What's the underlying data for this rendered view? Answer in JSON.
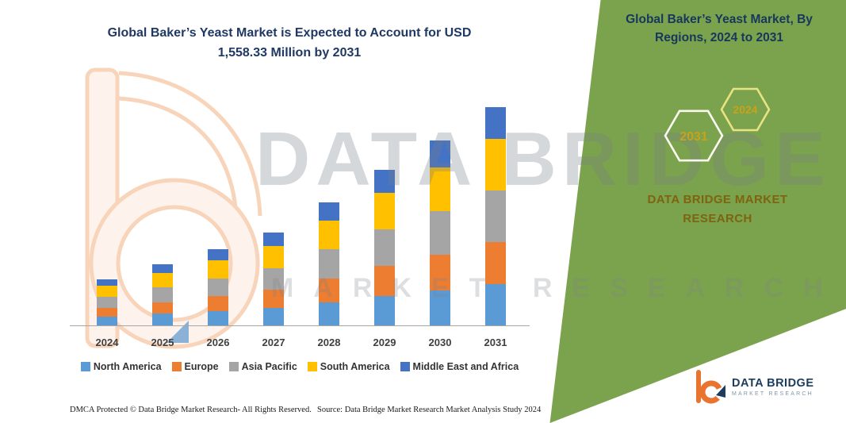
{
  "colors": {
    "panel_green": "#7ba24c",
    "title_navy": "#1f3864",
    "brand_gold": "#7d6410",
    "logo_orange": "#e8742f",
    "logo_navy": "#1c3c5e"
  },
  "watermark": {
    "line1": "DATA BRIDGE",
    "line2": "MARKET RESEARCH"
  },
  "chart_data": {
    "type": "bar",
    "stacked": true,
    "title": "Global Baker’s Yeast Market is Expected to Account for USD 1,558.33 Million by 2031",
    "xlabel": "",
    "ylabel": "",
    "ylim": [
      0,
      1600
    ],
    "grid": false,
    "legend_position": "bottom",
    "categories": [
      "2024",
      "2025",
      "2026",
      "2027",
      "2028",
      "2029",
      "2030",
      "2031"
    ],
    "series": [
      {
        "name": "North America",
        "color": "#5B9BD5",
        "values": [
          62,
          83,
          103,
          126,
          166,
          210,
          250,
          295
        ]
      },
      {
        "name": "Europe",
        "color": "#ED7D31",
        "values": [
          63,
          84,
          105,
          128,
          169,
          214,
          254,
          300
        ]
      },
      {
        "name": "Asia Pacific",
        "color": "#A5A5A5",
        "values": [
          78,
          103,
          128,
          157,
          207,
          262,
          312,
          368
        ]
      },
      {
        "name": "South America",
        "color": "#FFC000",
        "values": [
          78,
          103,
          128,
          156,
          207,
          262,
          312,
          368
        ]
      },
      {
        "name": "Middle East and Africa",
        "color": "#4472C4",
        "values": [
          48,
          63,
          80,
          96,
          129,
          163,
          192,
          227.33
        ]
      }
    ]
  },
  "panel": {
    "title": "Global Baker’s Yeast Market, By Regions, 2024 to 2031",
    "badge_back": "2031",
    "badge_front": "2024",
    "brand": "DATA BRIDGE MARKET RESEARCH"
  },
  "footer": {
    "dmca": "DMCA Protected © Data Bridge Market Research-  All Rights Reserved.",
    "source": "Source: Data Bridge Market Research  Market Analysis Study 2024"
  },
  "logo": {
    "name": "DATA BRIDGE",
    "tagline": "MARKET RESEARCH"
  }
}
